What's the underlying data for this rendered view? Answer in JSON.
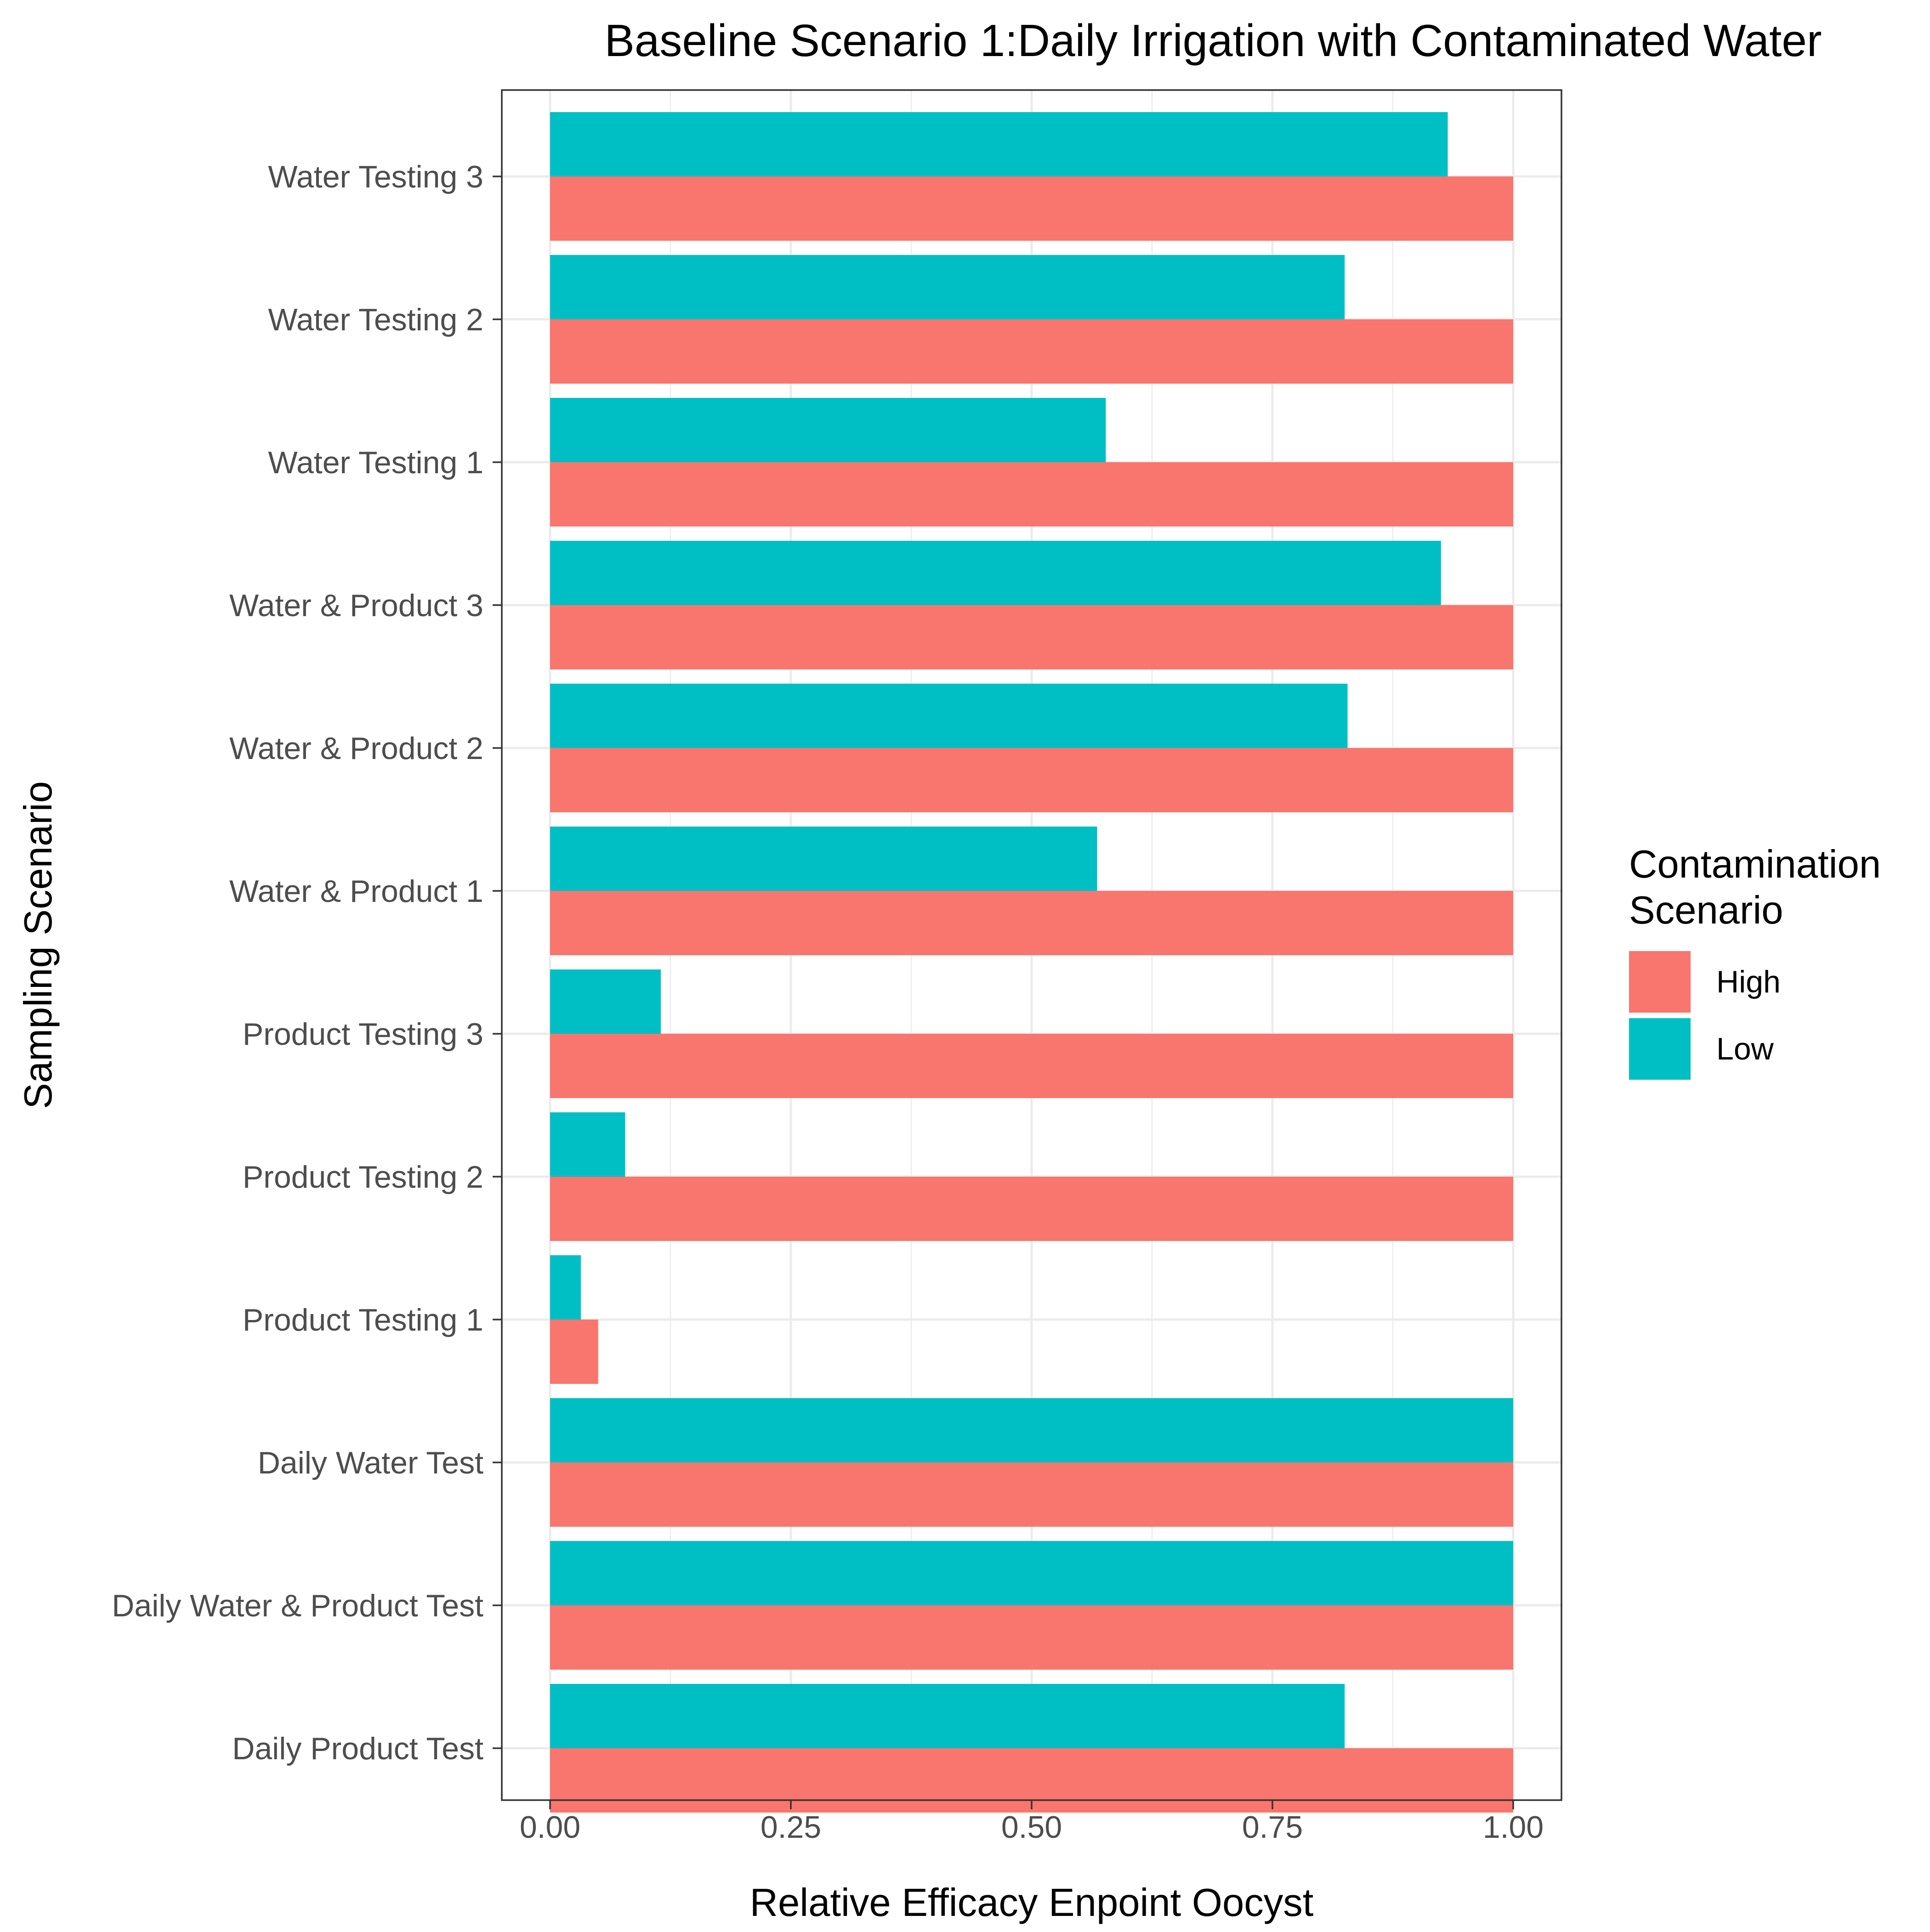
{
  "chart_data": {
    "type": "bar",
    "orientation": "horizontal",
    "title": "Baseline Scenario 1:Daily Irrigation with Contaminated Water",
    "xlabel": "Relative Efficacy Enpoint Oocyst",
    "ylabel": "Sampling Scenario",
    "xlim": [
      0,
      1
    ],
    "x_ticks": [
      "0.00",
      "0.25",
      "0.50",
      "0.75",
      "1.00"
    ],
    "grid": true,
    "legend_position": "right",
    "legend": {
      "title_lines": [
        "Contamination",
        "Scenario"
      ],
      "entries": [
        {
          "label": "High",
          "color": "#F8766D"
        },
        {
          "label": "Low",
          "color": "#00BFC4"
        }
      ]
    },
    "categories": [
      "Daily Product Test",
      "Daily Water & Product Test",
      "Daily Water Test",
      "Product Testing 1",
      "Product Testing 2",
      "Product Testing 3",
      "Water & Product 1",
      "Water & Product 2",
      "Water & Product 3",
      "Water Testing 1",
      "Water Testing 2",
      "Water Testing 3"
    ],
    "series": [
      {
        "name": "High",
        "color": "#F8766D",
        "values": [
          1.0,
          1.0,
          1.0,
          0.05,
          1.0,
          1.0,
          1.0,
          1.0,
          1.0,
          1.0,
          1.0,
          1.0
        ]
      },
      {
        "name": "Low",
        "color": "#00BFC4",
        "values": [
          0.825,
          1.0,
          1.0,
          0.032,
          0.078,
          0.115,
          0.568,
          0.828,
          0.925,
          0.577,
          0.825,
          0.932
        ]
      }
    ]
  }
}
